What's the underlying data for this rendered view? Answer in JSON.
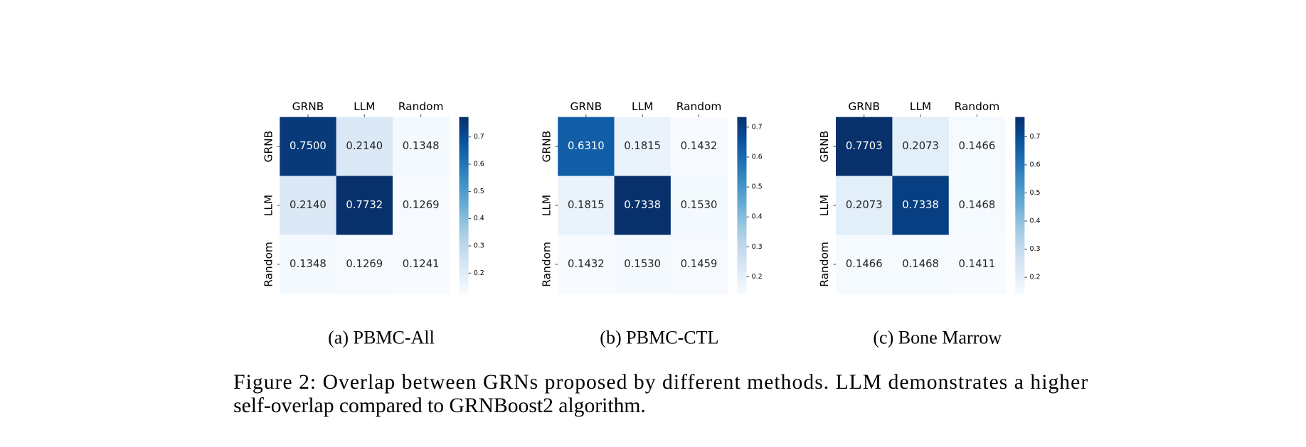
{
  "chart_data": [
    {
      "type": "heatmap",
      "caption": "(a) PBMC-All",
      "cmap": "Blues",
      "x_categories": [
        "GRNB",
        "LLM",
        "Random"
      ],
      "y_categories": [
        "GRNB",
        "LLM",
        "Random"
      ],
      "values": [
        [
          0.75,
          0.214,
          0.1348
        ],
        [
          0.214,
          0.7732,
          0.1269
        ],
        [
          0.1348,
          0.1269,
          0.1241
        ]
      ],
      "value_labels": [
        [
          "0.7500",
          "0.2140",
          "0.1348"
        ],
        [
          "0.2140",
          "0.7732",
          "0.1269"
        ],
        [
          "0.1348",
          "0.1269",
          "0.1241"
        ]
      ],
      "clim": [
        0.1241,
        0.7732
      ],
      "cticks": [
        0.2,
        0.3,
        0.4,
        0.5,
        0.6,
        0.7
      ]
    },
    {
      "type": "heatmap",
      "caption": "(b) PBMC-CTL",
      "cmap": "Blues",
      "x_categories": [
        "GRNB",
        "LLM",
        "Random"
      ],
      "y_categories": [
        "GRNB",
        "LLM",
        "Random"
      ],
      "values": [
        [
          0.631,
          0.1815,
          0.1432
        ],
        [
          0.1815,
          0.7338,
          0.153
        ],
        [
          0.1432,
          0.153,
          0.1459
        ]
      ],
      "value_labels": [
        [
          "0.6310",
          "0.1815",
          "0.1432"
        ],
        [
          "0.1815",
          "0.7338",
          "0.1530"
        ],
        [
          "0.1432",
          "0.1530",
          "0.1459"
        ]
      ],
      "clim": [
        0.1432,
        0.7338
      ],
      "cticks": [
        0.2,
        0.3,
        0.4,
        0.5,
        0.6,
        0.7
      ]
    },
    {
      "type": "heatmap",
      "caption": "(c) Bone Marrow",
      "cmap": "Blues",
      "x_categories": [
        "GRNB",
        "LLM",
        "Random"
      ],
      "y_categories": [
        "GRNB",
        "LLM",
        "Random"
      ],
      "values": [
        [
          0.7703,
          0.2073,
          0.1466
        ],
        [
          0.2073,
          0.7338,
          0.1468
        ],
        [
          0.1466,
          0.1468,
          0.1411
        ]
      ],
      "value_labels": [
        [
          "0.7703",
          "0.2073",
          "0.1466"
        ],
        [
          "0.2073",
          "0.7338",
          "0.1468"
        ],
        [
          "0.1466",
          "0.1468",
          "0.1411"
        ]
      ],
      "clim": [
        0.1411,
        0.7703
      ],
      "cticks": [
        0.2,
        0.3,
        0.4,
        0.5,
        0.6,
        0.7
      ]
    }
  ],
  "figure_caption_lines": [
    "Figure 2: Overlap between GRNs proposed by different methods. LLM demonstrates a higher",
    "self-overlap compared to GRNBoost2 algorithm."
  ]
}
